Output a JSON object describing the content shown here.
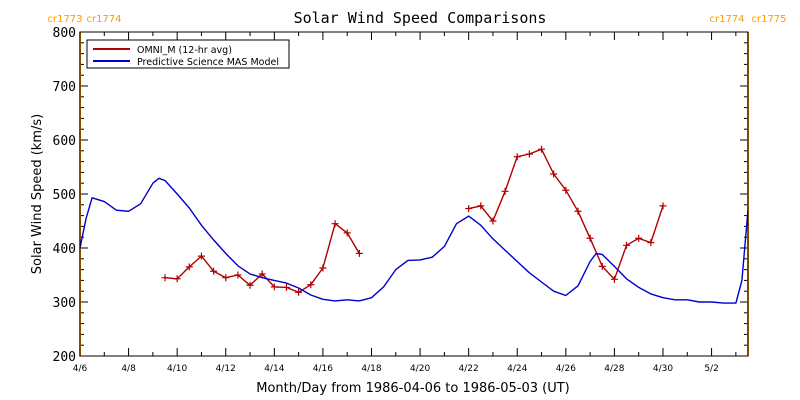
{
  "chart_data": {
    "type": "line",
    "title": "Solar Wind Speed Comparisons",
    "xlabel": "Month/Day from 1986-04-06 to 1986-05-03 (UT)",
    "ylabel": "Solar Wind Speed (km/s)",
    "x_axis_type": "date",
    "xlim": [
      "1986-04-06T00:00",
      "1986-05-03T12:00"
    ],
    "ylim": [
      200,
      800
    ],
    "x_ticks": [
      "4/6",
      "4/8",
      "4/10",
      "4/12",
      "4/14",
      "4/16",
      "4/18",
      "4/20",
      "4/22",
      "4/24",
      "4/26",
      "4/28",
      "4/30",
      "5/2"
    ],
    "y_ticks": [
      "200",
      "300",
      "400",
      "500",
      "600",
      "700",
      "800"
    ],
    "grid": false,
    "legend_position": "top-left",
    "carrington_markers": [
      {
        "date": "1986-04-06T00:00",
        "label_left": "cr1773",
        "label_right": "cr1774"
      },
      {
        "date": "1986-05-03T12:00",
        "label_left": "cr1774",
        "label_right": "cr1775"
      }
    ],
    "marker_color": "#ff9900",
    "series": [
      {
        "name": "OMNI_M (12-hr avg)",
        "color": "#b00000",
        "marker": "plus",
        "segments": [
          [
            [
              "1986-04-09T12:00",
              345
            ],
            [
              "1986-04-10T00:00",
              343
            ],
            [
              "1986-04-10T12:00",
              365
            ],
            [
              "1986-04-11T00:00",
              385
            ],
            [
              "1986-04-11T12:00",
              357
            ],
            [
              "1986-04-12T00:00",
              345
            ],
            [
              "1986-04-12T12:00",
              350
            ],
            [
              "1986-04-13T00:00",
              331
            ],
            [
              "1986-04-13T12:00",
              352
            ],
            [
              "1986-04-14T00:00",
              328
            ],
            [
              "1986-04-14T12:00",
              327
            ],
            [
              "1986-04-15T00:00",
              318
            ],
            [
              "1986-04-15T12:00",
              332
            ],
            [
              "1986-04-16T00:00",
              363
            ],
            [
              "1986-04-16T12:00",
              445
            ],
            [
              "1986-04-17T00:00",
              428
            ],
            [
              "1986-04-17T12:00",
              390
            ]
          ],
          [
            [
              "1986-04-22T00:00",
              473
            ],
            [
              "1986-04-22T12:00",
              478
            ],
            [
              "1986-04-23T00:00",
              450
            ],
            [
              "1986-04-23T12:00",
              505
            ],
            [
              "1986-04-24T00:00",
              569
            ],
            [
              "1986-04-24T12:00",
              574
            ],
            [
              "1986-04-25T00:00",
              583
            ],
            [
              "1986-04-25T12:00",
              537
            ],
            [
              "1986-04-26T00:00",
              507
            ],
            [
              "1986-04-26T12:00",
              468
            ],
            [
              "1986-04-27T00:00",
              418
            ],
            [
              "1986-04-27T12:00",
              366
            ],
            [
              "1986-04-28T00:00",
              342
            ],
            [
              "1986-04-28T12:00",
              405
            ],
            [
              "1986-04-29T00:00",
              418
            ],
            [
              "1986-04-29T12:00",
              410
            ],
            [
              "1986-04-30T00:00",
              478
            ]
          ]
        ]
      },
      {
        "name": "Predictive Science MAS Model",
        "color": "#0000cc",
        "marker": "none",
        "segments": [
          [
            [
              "1986-04-06T00:00",
              400
            ],
            [
              "1986-04-06T06:00",
              455
            ],
            [
              "1986-04-06T12:00",
              493
            ],
            [
              "1986-04-07T00:00",
              486
            ],
            [
              "1986-04-07T12:00",
              470
            ],
            [
              "1986-04-08T00:00",
              468
            ],
            [
              "1986-04-08T12:00",
              482
            ],
            [
              "1986-04-09T00:00",
              520
            ],
            [
              "1986-04-09T06:00",
              529
            ],
            [
              "1986-04-09T12:00",
              525
            ],
            [
              "1986-04-10T00:00",
              500
            ],
            [
              "1986-04-10T12:00",
              474
            ],
            [
              "1986-04-11T00:00",
              442
            ],
            [
              "1986-04-11T12:00",
              415
            ],
            [
              "1986-04-12T00:00",
              390
            ],
            [
              "1986-04-12T12:00",
              367
            ],
            [
              "1986-04-13T00:00",
              352
            ],
            [
              "1986-04-13T12:00",
              345
            ],
            [
              "1986-04-14T00:00",
              340
            ],
            [
              "1986-04-14T12:00",
              335
            ],
            [
              "1986-04-15T00:00",
              326
            ],
            [
              "1986-04-15T12:00",
              313
            ],
            [
              "1986-04-16T00:00",
              305
            ],
            [
              "1986-04-16T12:00",
              302
            ],
            [
              "1986-04-17T00:00",
              304
            ],
            [
              "1986-04-17T12:00",
              302
            ],
            [
              "1986-04-18T00:00",
              308
            ],
            [
              "1986-04-18T12:00",
              328
            ],
            [
              "1986-04-19T00:00",
              360
            ],
            [
              "1986-04-19T12:00",
              377
            ],
            [
              "1986-04-20T00:00",
              378
            ],
            [
              "1986-04-20T12:00",
              383
            ],
            [
              "1986-04-21T00:00",
              403
            ],
            [
              "1986-04-21T12:00",
              445
            ],
            [
              "1986-04-22T00:00",
              459
            ],
            [
              "1986-04-22T12:00",
              442
            ],
            [
              "1986-04-23T00:00",
              417
            ],
            [
              "1986-04-23T12:00",
              396
            ],
            [
              "1986-04-24T00:00",
              375
            ],
            [
              "1986-04-24T12:00",
              354
            ],
            [
              "1986-04-25T00:00",
              337
            ],
            [
              "1986-04-25T12:00",
              320
            ],
            [
              "1986-04-26T00:00",
              312
            ],
            [
              "1986-04-26T12:00",
              330
            ],
            [
              "1986-04-27T00:00",
              375
            ],
            [
              "1986-04-27T06:00",
              390
            ],
            [
              "1986-04-27T12:00",
              388
            ],
            [
              "1986-04-28T00:00",
              366
            ],
            [
              "1986-04-28T12:00",
              343
            ],
            [
              "1986-04-29T00:00",
              327
            ],
            [
              "1986-04-29T12:00",
              315
            ],
            [
              "1986-04-30T00:00",
              308
            ],
            [
              "1986-04-30T12:00",
              304
            ],
            [
              "1986-05-01T00:00",
              304
            ],
            [
              "1986-05-01T12:00",
              300
            ],
            [
              "1986-05-02T00:00",
              300
            ],
            [
              "1986-05-02T12:00",
              298
            ],
            [
              "1986-05-03T00:00",
              298
            ],
            [
              "1986-05-03T06:00",
              340
            ],
            [
              "1986-05-03T12:00",
              470
            ]
          ]
        ]
      }
    ]
  }
}
